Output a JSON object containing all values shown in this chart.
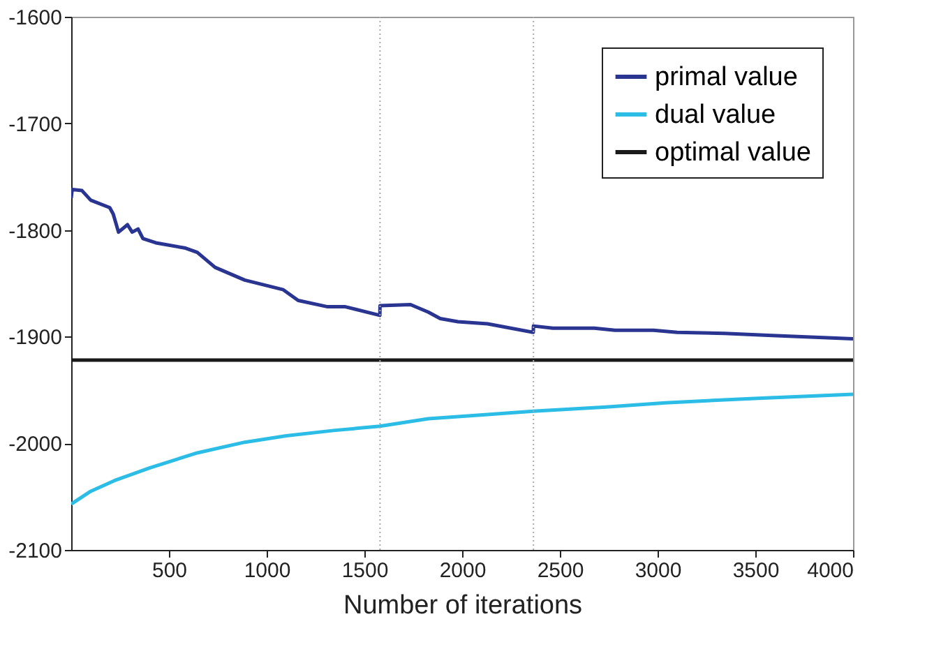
{
  "chart_data": {
    "type": "line",
    "xlabel": "Number of iterations",
    "xlim": [
      0,
      4000
    ],
    "xticks": [
      500,
      1000,
      1500,
      2000,
      2500,
      3000,
      3500,
      4000
    ],
    "ylim": [
      -2100,
      -1600
    ],
    "yticks": [
      -2100,
      -2000,
      -1900,
      -1800,
      -1700,
      -1600
    ],
    "grid": false,
    "legend": "top right",
    "marker": "none",
    "line_style": "solid",
    "series": [
      {
        "name": "primal value",
        "color": "#2a3591",
        "x": [
          0,
          5,
          55,
          100,
          197,
          215,
          242,
          288,
          312,
          342,
          367,
          433,
          585,
          645,
          736,
          888,
          1085,
          1161,
          1312,
          1403,
          1579,
          1580,
          1736,
          1827,
          1888,
          1979,
          2130,
          2364,
          2365,
          2464,
          2676,
          2782,
          2979,
          3100,
          3342,
          3585,
          4000
        ],
        "values": [
          -1770,
          -1762,
          -1763,
          -1772,
          -1779,
          -1785,
          -1802,
          -1795,
          -1802,
          -1799,
          -1808,
          -1812,
          -1817,
          -1821,
          -1835,
          -1847,
          -1856,
          -1866,
          -1872,
          -1872,
          -1880,
          -1871,
          -1870,
          -1877,
          -1883,
          -1886,
          -1888,
          -1896,
          -1890,
          -1892,
          -1892,
          -1894,
          -1894,
          -1896,
          -1897,
          -1899,
          -1902
        ]
      },
      {
        "name": "dual value",
        "color": "#2bbde6",
        "x": [
          0,
          100,
          221,
          403,
          645,
          888,
          1100,
          1342,
          1579,
          1827,
          2130,
          2364,
          2736,
          3039,
          3494,
          4000
        ],
        "values": [
          -2057,
          -2045,
          -2035,
          -2023,
          -2009,
          -1999,
          -1993,
          -1988,
          -1984,
          -1977,
          -1973,
          -1970,
          -1966,
          -1962,
          -1958,
          -1954
        ]
      },
      {
        "name": "optimal value",
        "color": "#1a1a1a",
        "x": [
          0,
          4000
        ],
        "values": [
          -1922,
          -1922
        ]
      }
    ],
    "ref_lines": [
      {
        "axis": "x",
        "value": 1580,
        "color": "#aaaaaa",
        "line_style": "dotted"
      },
      {
        "axis": "x",
        "value": 2365,
        "color": "#aaaaaa",
        "line_style": "dotted"
      }
    ]
  }
}
